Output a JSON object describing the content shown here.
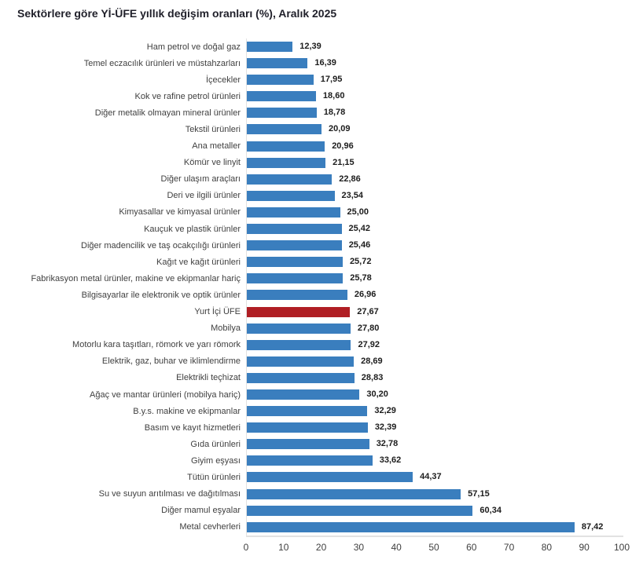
{
  "title": "Sektörlere göre Yİ-ÜFE yıllık değişim oranları (%), Aralık 2025",
  "colors": {
    "bar": "#3a7ebe",
    "highlight_bar": "#b01e24",
    "axis_line": "#e2e2e2",
    "category_text": "#404040",
    "value_text": "#1c1c1c",
    "tick_text": "#3f3f3f",
    "title_text": "#21212b"
  },
  "chart_data": {
    "type": "bar",
    "orientation": "horizontal",
    "title": "Sektörlere göre Yİ-ÜFE yıllık değişim oranları (%), Aralık 2025",
    "xlabel": "",
    "ylabel": "",
    "xlim": [
      0,
      100
    ],
    "x_ticks": [
      0,
      10,
      20,
      30,
      40,
      50,
      60,
      70,
      80,
      90,
      100
    ],
    "grid": false,
    "legend": null,
    "highlight_index": 16,
    "highlight_category": "Yurt İçi ÜFE",
    "categories": [
      "Ham petrol ve doğal gaz",
      "Temel eczacılık ürünleri ve müstahzarları",
      "İçecekler",
      "Kok ve rafine petrol ürünleri",
      "Diğer metalik olmayan mineral ürünler",
      "Tekstil ürünleri",
      "Ana metaller",
      "Kömür ve linyit",
      "Diğer ulaşım araçları",
      "Deri ve ilgili ürünler",
      "Kimyasallar ve kimyasal ürünler",
      "Kauçuk ve plastik ürünler",
      "Diğer madencilik ve taş ocakçılığı ürünleri",
      "Kağıt ve kağıt ürünleri",
      "Fabrikasyon metal ürünler, makine ve ekipmanlar hariç",
      "Bilgisayarlar ile elektronik ve optik ürünler",
      "Yurt İçi ÜFE",
      "Mobilya",
      "Motorlu kara taşıtları, römork ve yarı römork",
      "Elektrik, gaz, buhar ve iklimlendirme",
      "Elektrikli teçhizat",
      "Ağaç ve mantar ürünleri (mobilya hariç)",
      "B.y.s. makine ve ekipmanlar",
      "Basım ve kayıt hizmetleri",
      "Gıda ürünleri",
      "Giyim eşyası",
      "Tütün ürünleri",
      "Su ve suyun arıtılması ve dağıtılması",
      "Diğer mamul eşyalar",
      "Metal cevherleri"
    ],
    "values": [
      12.39,
      16.39,
      17.95,
      18.6,
      18.78,
      20.09,
      20.96,
      21.15,
      22.86,
      23.54,
      25.0,
      25.42,
      25.46,
      25.72,
      25.78,
      26.96,
      27.67,
      27.8,
      27.92,
      28.69,
      28.83,
      30.2,
      32.29,
      32.39,
      32.78,
      33.62,
      44.37,
      57.15,
      60.34,
      87.42
    ],
    "value_labels": [
      "12,39",
      "16,39",
      "17,95",
      "18,60",
      "18,78",
      "20,09",
      "20,96",
      "21,15",
      "22,86",
      "23,54",
      "25,00",
      "25,42",
      "25,46",
      "25,72",
      "25,78",
      "26,96",
      "27,67",
      "27,80",
      "27,92",
      "28,69",
      "28,83",
      "30,20",
      "32,29",
      "32,39",
      "32,78",
      "33,62",
      "44,37",
      "57,15",
      "60,34",
      "87,42"
    ]
  }
}
